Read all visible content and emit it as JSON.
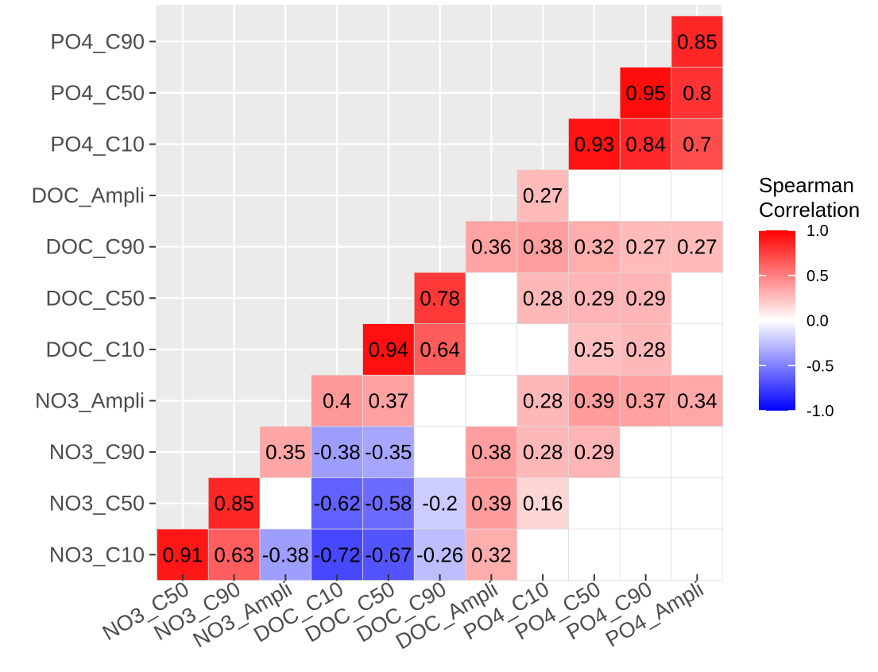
{
  "chart_data": {
    "type": "heatmap",
    "title": "",
    "xlabel": "",
    "ylabel": "",
    "x_categories": [
      "NO3_C50",
      "NO3_C90",
      "NO3_Ampli",
      "DOC_C10",
      "DOC_C50",
      "DOC_C90",
      "DOC_Ampli",
      "PO4_C10",
      "PO4_C50",
      "PO4_C90",
      "PO4_Ampli"
    ],
    "y_categories": [
      "NO3_C10",
      "NO3_C50",
      "NO3_C90",
      "NO3_Ampli",
      "DOC_C10",
      "DOC_C50",
      "DOC_C90",
      "DOC_Ampli",
      "PO4_C10",
      "PO4_C50",
      "PO4_C90"
    ],
    "cells": [
      {
        "x": "NO3_C50",
        "y": "NO3_C10",
        "value": 0.91,
        "label": "0.91"
      },
      {
        "x": "NO3_C90",
        "y": "NO3_C10",
        "value": 0.63,
        "label": "0.63"
      },
      {
        "x": "NO3_Ampli",
        "y": "NO3_C10",
        "value": -0.38,
        "label": "-0.38"
      },
      {
        "x": "DOC_C10",
        "y": "NO3_C10",
        "value": -0.72,
        "label": "-0.72"
      },
      {
        "x": "DOC_C50",
        "y": "NO3_C10",
        "value": -0.67,
        "label": "-0.67"
      },
      {
        "x": "DOC_C90",
        "y": "NO3_C10",
        "value": -0.26,
        "label": "-0.26"
      },
      {
        "x": "DOC_Ampli",
        "y": "NO3_C10",
        "value": 0.32,
        "label": "0.32"
      },
      {
        "x": "PO4_C10",
        "y": "NO3_C10",
        "value": null,
        "label": ""
      },
      {
        "x": "PO4_C50",
        "y": "NO3_C10",
        "value": null,
        "label": ""
      },
      {
        "x": "PO4_C90",
        "y": "NO3_C10",
        "value": null,
        "label": ""
      },
      {
        "x": "PO4_Ampli",
        "y": "NO3_C10",
        "value": null,
        "label": ""
      },
      {
        "x": "NO3_C90",
        "y": "NO3_C50",
        "value": 0.85,
        "label": "0.85"
      },
      {
        "x": "NO3_Ampli",
        "y": "NO3_C50",
        "value": null,
        "label": ""
      },
      {
        "x": "DOC_C10",
        "y": "NO3_C50",
        "value": -0.62,
        "label": "-0.62"
      },
      {
        "x": "DOC_C50",
        "y": "NO3_C50",
        "value": -0.58,
        "label": "-0.58"
      },
      {
        "x": "DOC_C90",
        "y": "NO3_C50",
        "value": -0.2,
        "label": "-0.2"
      },
      {
        "x": "DOC_Ampli",
        "y": "NO3_C50",
        "value": 0.39,
        "label": "0.39"
      },
      {
        "x": "PO4_C10",
        "y": "NO3_C50",
        "value": 0.16,
        "label": "0.16"
      },
      {
        "x": "PO4_C50",
        "y": "NO3_C50",
        "value": null,
        "label": ""
      },
      {
        "x": "PO4_C90",
        "y": "NO3_C50",
        "value": null,
        "label": ""
      },
      {
        "x": "PO4_Ampli",
        "y": "NO3_C50",
        "value": null,
        "label": ""
      },
      {
        "x": "NO3_Ampli",
        "y": "NO3_C90",
        "value": 0.35,
        "label": "0.35"
      },
      {
        "x": "DOC_C10",
        "y": "NO3_C90",
        "value": -0.38,
        "label": "-0.38"
      },
      {
        "x": "DOC_C50",
        "y": "NO3_C90",
        "value": -0.35,
        "label": "-0.35"
      },
      {
        "x": "DOC_C90",
        "y": "NO3_C90",
        "value": null,
        "label": ""
      },
      {
        "x": "DOC_Ampli",
        "y": "NO3_C90",
        "value": 0.38,
        "label": "0.38"
      },
      {
        "x": "PO4_C10",
        "y": "NO3_C90",
        "value": 0.28,
        "label": "0.28"
      },
      {
        "x": "PO4_C50",
        "y": "NO3_C90",
        "value": 0.29,
        "label": "0.29"
      },
      {
        "x": "PO4_C90",
        "y": "NO3_C90",
        "value": null,
        "label": ""
      },
      {
        "x": "PO4_Ampli",
        "y": "NO3_C90",
        "value": null,
        "label": ""
      },
      {
        "x": "DOC_C10",
        "y": "NO3_Ampli",
        "value": 0.4,
        "label": "0.4"
      },
      {
        "x": "DOC_C50",
        "y": "NO3_Ampli",
        "value": 0.37,
        "label": "0.37"
      },
      {
        "x": "DOC_C90",
        "y": "NO3_Ampli",
        "value": null,
        "label": ""
      },
      {
        "x": "DOC_Ampli",
        "y": "NO3_Ampli",
        "value": null,
        "label": ""
      },
      {
        "x": "PO4_C10",
        "y": "NO3_Ampli",
        "value": 0.28,
        "label": "0.28"
      },
      {
        "x": "PO4_C50",
        "y": "NO3_Ampli",
        "value": 0.39,
        "label": "0.39"
      },
      {
        "x": "PO4_C90",
        "y": "NO3_Ampli",
        "value": 0.37,
        "label": "0.37"
      },
      {
        "x": "PO4_Ampli",
        "y": "NO3_Ampli",
        "value": 0.34,
        "label": "0.34"
      },
      {
        "x": "DOC_C50",
        "y": "DOC_C10",
        "value": 0.94,
        "label": "0.94"
      },
      {
        "x": "DOC_C90",
        "y": "DOC_C10",
        "value": 0.64,
        "label": "0.64"
      },
      {
        "x": "DOC_Ampli",
        "y": "DOC_C10",
        "value": null,
        "label": ""
      },
      {
        "x": "PO4_C10",
        "y": "DOC_C10",
        "value": null,
        "label": ""
      },
      {
        "x": "PO4_C50",
        "y": "DOC_C10",
        "value": 0.25,
        "label": "0.25"
      },
      {
        "x": "PO4_C90",
        "y": "DOC_C10",
        "value": 0.28,
        "label": "0.28"
      },
      {
        "x": "PO4_Ampli",
        "y": "DOC_C10",
        "value": null,
        "label": ""
      },
      {
        "x": "DOC_C90",
        "y": "DOC_C50",
        "value": 0.78,
        "label": "0.78"
      },
      {
        "x": "DOC_Ampli",
        "y": "DOC_C50",
        "value": null,
        "label": ""
      },
      {
        "x": "PO4_C10",
        "y": "DOC_C50",
        "value": 0.28,
        "label": "0.28"
      },
      {
        "x": "PO4_C50",
        "y": "DOC_C50",
        "value": 0.29,
        "label": "0.29"
      },
      {
        "x": "PO4_C90",
        "y": "DOC_C50",
        "value": 0.29,
        "label": "0.29"
      },
      {
        "x": "PO4_Ampli",
        "y": "DOC_C50",
        "value": null,
        "label": ""
      },
      {
        "x": "DOC_Ampli",
        "y": "DOC_C90",
        "value": 0.36,
        "label": "0.36"
      },
      {
        "x": "PO4_C10",
        "y": "DOC_C90",
        "value": 0.38,
        "label": "0.38"
      },
      {
        "x": "PO4_C50",
        "y": "DOC_C90",
        "value": 0.32,
        "label": "0.32"
      },
      {
        "x": "PO4_C90",
        "y": "DOC_C90",
        "value": 0.27,
        "label": "0.27"
      },
      {
        "x": "PO4_Ampli",
        "y": "DOC_C90",
        "value": 0.27,
        "label": "0.27"
      },
      {
        "x": "PO4_C10",
        "y": "DOC_Ampli",
        "value": 0.27,
        "label": "0.27"
      },
      {
        "x": "PO4_C50",
        "y": "DOC_Ampli",
        "value": null,
        "label": ""
      },
      {
        "x": "PO4_C90",
        "y": "DOC_Ampli",
        "value": null,
        "label": ""
      },
      {
        "x": "PO4_Ampli",
        "y": "DOC_Ampli",
        "value": null,
        "label": ""
      },
      {
        "x": "PO4_C50",
        "y": "PO4_C10",
        "value": 0.93,
        "label": "0.93"
      },
      {
        "x": "PO4_C90",
        "y": "PO4_C10",
        "value": 0.84,
        "label": "0.84"
      },
      {
        "x": "PO4_Ampli",
        "y": "PO4_C10",
        "value": 0.7,
        "label": "0.7"
      },
      {
        "x": "PO4_C90",
        "y": "PO4_C50",
        "value": 0.95,
        "label": "0.95"
      },
      {
        "x": "PO4_Ampli",
        "y": "PO4_C50",
        "value": 0.8,
        "label": "0.8"
      },
      {
        "x": "PO4_Ampli",
        "y": "PO4_C90",
        "value": 0.85,
        "label": "0.85"
      }
    ],
    "legend": {
      "title_lines": [
        "Spearman",
        "Correlation"
      ],
      "placement": "right",
      "ticks": [
        {
          "value": 1.0,
          "label": "1.0"
        },
        {
          "value": 0.5,
          "label": "0.5"
        },
        {
          "value": 0.0,
          "label": "0.0"
        },
        {
          "value": -0.5,
          "label": "-0.5"
        },
        {
          "value": -1.0,
          "label": "-1.0"
        }
      ],
      "range": [
        -1,
        1
      ]
    },
    "colors": {
      "low": "#0000ff",
      "mid": "#ffffff",
      "high": "#ff0000",
      "panel_background": "#ebebeb",
      "grid": "#ffffff"
    },
    "grid": true
  }
}
